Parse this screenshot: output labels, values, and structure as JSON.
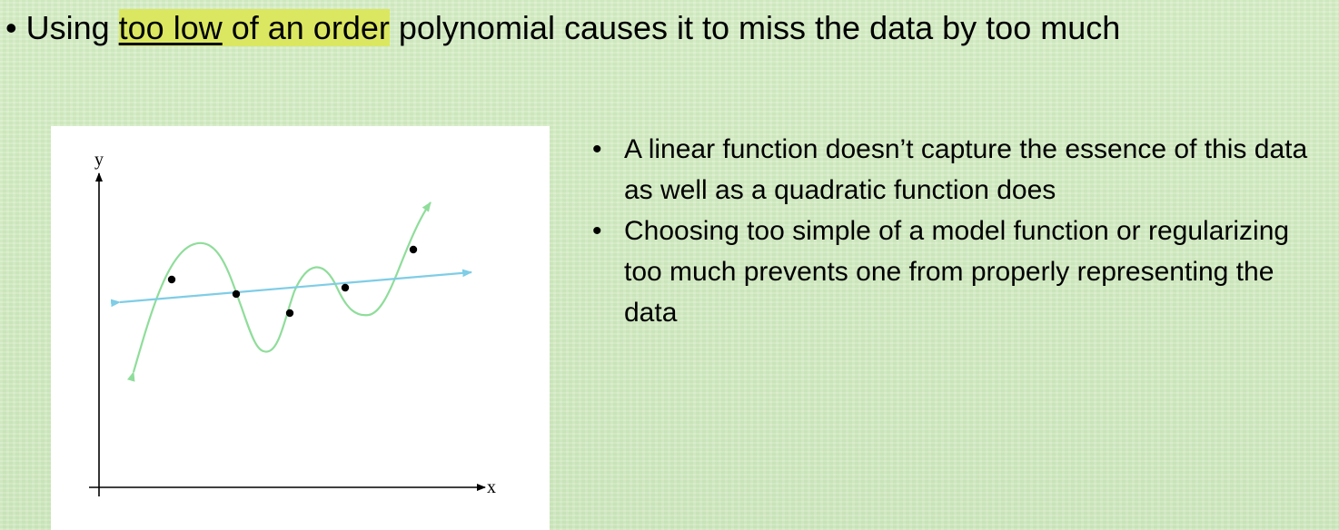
{
  "headline": {
    "bullet": "•",
    "prefix": "Using ",
    "highlight_underlined": "too low",
    "highlight_rest": " of an order",
    "suffix": " polynomial causes it to miss the data by too much",
    "highlight_color": "#dbe760"
  },
  "figure": {
    "y_label": "y",
    "x_label": "x",
    "curve_color": "#8fdd9a",
    "line_color": "#7fcde6",
    "point_count": 5
  },
  "bullets": [
    {
      "dot": "•",
      "text": "A linear function doesn’t capture the essence of this data as well as a quadratic function does"
    },
    {
      "dot": "•",
      "text": "Choosing too simple of a model function or regularizing too much prevents one from properly representing the data"
    }
  ]
}
